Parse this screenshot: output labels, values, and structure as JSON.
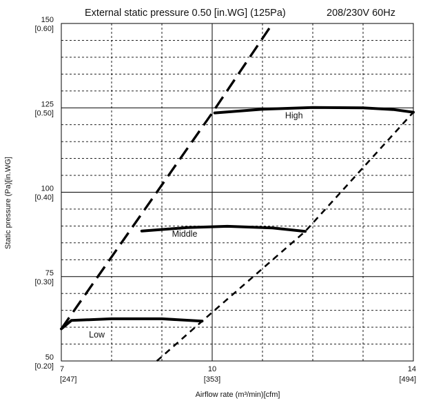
{
  "chart_data": {
    "type": "line",
    "title": "External static pressure 0.50 [in.WG] (125Pa)",
    "subtitle": "208/230V 60Hz",
    "xlabel": "Airflow rate (m³/min)[cfm]",
    "ylabel": "Static pressure (Pa)[in.WG]",
    "xlim": [
      7,
      14
    ],
    "ylim": [
      50,
      150
    ],
    "x_ticks": [
      {
        "value": 7,
        "label": "7",
        "sublabel": "[247]"
      },
      {
        "value": 10,
        "label": "10",
        "sublabel": "[353]"
      },
      {
        "value": 14,
        "label": "14",
        "sublabel": "[494]"
      }
    ],
    "y_ticks": [
      {
        "value": 50,
        "label": "50",
        "sublabel": "[0.20]"
      },
      {
        "value": 75,
        "label": "75",
        "sublabel": "[0.30]"
      },
      {
        "value": 100,
        "label": "100",
        "sublabel": "[0.40]"
      },
      {
        "value": 125,
        "label": "125",
        "sublabel": "[0.50]"
      },
      {
        "value": 150,
        "label": "150",
        "sublabel": "[0.60]"
      }
    ],
    "grid": true,
    "series": [
      {
        "name": "High",
        "x": [
          10.05,
          11.0,
          12.0,
          13.0,
          13.6,
          14.0
        ],
        "y": [
          123.5,
          124.6,
          125.1,
          125.0,
          124.5,
          123.7
        ],
        "label_at": [
          11.45,
          121.9
        ]
      },
      {
        "name": "Middle",
        "x": [
          8.6,
          9.5,
          10.3,
          11.2,
          11.85
        ],
        "y": [
          88.5,
          89.5,
          89.9,
          89.4,
          88.4
        ],
        "label_at": [
          9.2,
          86.8
        ]
      },
      {
        "name": "Low",
        "x": [
          7.0,
          7.2,
          8.0,
          9.0,
          9.8
        ],
        "y": [
          59.5,
          62.0,
          62.5,
          62.5,
          61.8
        ],
        "label_at": [
          7.55,
          57.0
        ]
      }
    ],
    "limit_lines": [
      {
        "style": "long-dash",
        "x": [
          7.0,
          10.0,
          11.2
        ],
        "y": [
          59.5,
          123.5,
          150.0
        ]
      },
      {
        "style": "short-dash",
        "x": [
          8.9,
          9.8,
          11.85,
          14.0
        ],
        "y": [
          50.0,
          61.8,
          88.4,
          123.7
        ]
      }
    ],
    "colors": {
      "lines": "#000000",
      "grid": "#000000",
      "background": "#ffffff"
    }
  }
}
